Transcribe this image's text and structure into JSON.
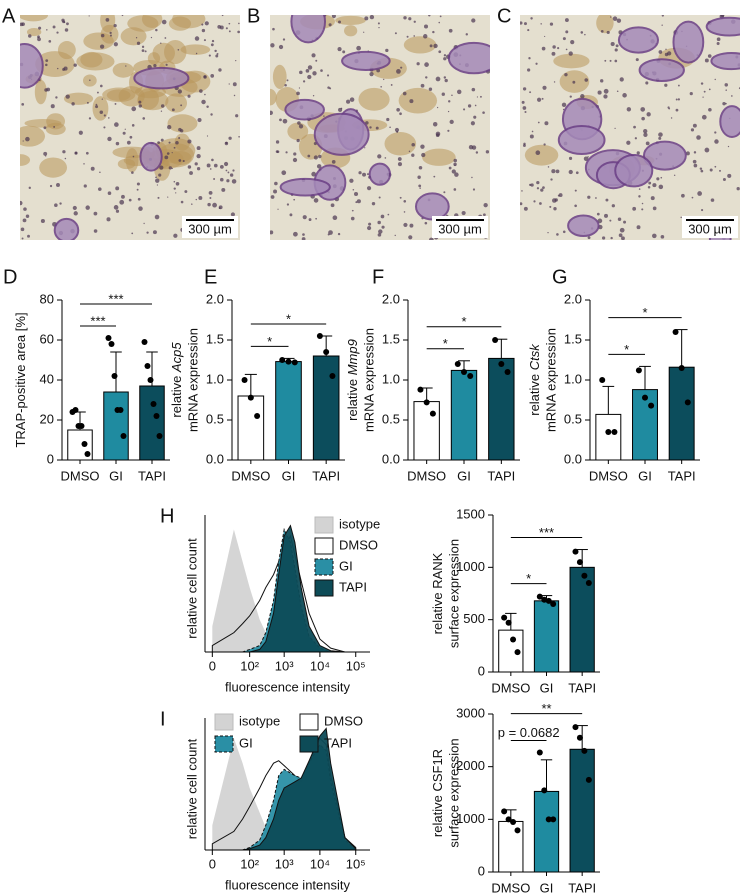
{
  "images": [
    {
      "panel": "A",
      "scale_bar": "300 µm"
    },
    {
      "panel": "B",
      "scale_bar": "300 µm"
    },
    {
      "panel": "C",
      "scale_bar": "300 µm"
    }
  ],
  "chart_data": [
    {
      "type": "bar",
      "panel": "D",
      "ylabel": "TRAP-positive area [%]",
      "categories": [
        "DMSO",
        "GI",
        "TAPI"
      ],
      "colors": [
        "#ffffff",
        "#1f8ba0",
        "#0c4d5c"
      ],
      "values": [
        15,
        34,
        37
      ],
      "errors": [
        9,
        20,
        17
      ],
      "points": [
        [
          24,
          25,
          17,
          17,
          8,
          3
        ],
        [
          61,
          58,
          42,
          25,
          25,
          12
        ],
        [
          59,
          47,
          40,
          28,
          22,
          12
        ]
      ],
      "ylim": [
        0,
        80
      ],
      "yticks": [
        0,
        20,
        40,
        60,
        80
      ],
      "significance": [
        {
          "pair": [
            "DMSO",
            "GI"
          ],
          "label": "***"
        },
        {
          "pair": [
            "DMSO",
            "TAPI"
          ],
          "label": "***"
        }
      ]
    },
    {
      "type": "bar",
      "panel": "E",
      "ylabel": "relative",
      "gene": "Acp5",
      "ylabel2": "mRNA expression",
      "categories": [
        "DMSO",
        "GI",
        "TAPI"
      ],
      "colors": [
        "#ffffff",
        "#1f8ba0",
        "#0c4d5c"
      ],
      "values": [
        0.8,
        1.23,
        1.3
      ],
      "errors": [
        0.27,
        0.04,
        0.25
      ],
      "points": [
        [
          1.0,
          0.78,
          0.55
        ],
        [
          1.25,
          1.23,
          1.22
        ],
        [
          1.55,
          1.35,
          1.05
        ]
      ],
      "ylim": [
        0,
        2
      ],
      "yticks": [
        {
          "value": 0,
          "label": "0.0"
        },
        0.5,
        {
          "value": 1,
          "label": "1.0"
        },
        1.5,
        {
          "value": 2,
          "label": "2.0"
        }
      ],
      "significance": [
        {
          "pair": [
            "DMSO",
            "GI"
          ],
          "label": "*"
        },
        {
          "pair": [
            "DMSO",
            "TAPI"
          ],
          "label": "*"
        }
      ]
    },
    {
      "type": "bar",
      "panel": "F",
      "ylabel": "relative",
      "gene": "Mmp9",
      "ylabel2": "mRNA expression",
      "categories": [
        "DMSO",
        "GI",
        "TAPI"
      ],
      "colors": [
        "#ffffff",
        "#1f8ba0",
        "#0c4d5c"
      ],
      "values": [
        0.73,
        1.12,
        1.27
      ],
      "errors": [
        0.17,
        0.12,
        0.24
      ],
      "points": [
        [
          0.88,
          0.72,
          0.58
        ],
        [
          1.2,
          1.1,
          1.05
        ],
        [
          1.5,
          1.2,
          1.1
        ]
      ],
      "ylim": [
        0,
        2
      ],
      "yticks": [
        {
          "value": 0,
          "label": "0.0"
        },
        0.5,
        {
          "value": 1,
          "label": "1.0"
        },
        1.5,
        {
          "value": 2,
          "label": "2.0"
        }
      ],
      "significance": [
        {
          "pair": [
            "DMSO",
            "GI"
          ],
          "label": "*"
        },
        {
          "pair": [
            "DMSO",
            "TAPI"
          ],
          "label": "*"
        }
      ]
    },
    {
      "type": "bar",
      "panel": "G",
      "ylabel": "relative",
      "gene": "Ctsk",
      "ylabel2": "mRNA expression",
      "categories": [
        "DMSO",
        "GI",
        "TAPI"
      ],
      "colors": [
        "#ffffff",
        "#1f8ba0",
        "#0c4d5c"
      ],
      "values": [
        0.57,
        0.88,
        1.16
      ],
      "errors": [
        0.35,
        0.29,
        0.47
      ],
      "points": [
        [
          1.0,
          0.35,
          0.35
        ],
        [
          1.12,
          0.78,
          0.68
        ],
        [
          1.6,
          1.15,
          0.72
        ]
      ],
      "ylim": [
        0,
        2
      ],
      "yticks": [
        {
          "value": 0,
          "label": "0.0"
        },
        0.5,
        {
          "value": 1,
          "label": "1.0"
        },
        1.5,
        {
          "value": 2,
          "label": "2.0"
        }
      ],
      "significance": [
        {
          "pair": [
            "DMSO",
            "GI"
          ],
          "label": "*"
        },
        {
          "pair": [
            "DMSO",
            "TAPI"
          ],
          "label": "*"
        }
      ]
    },
    {
      "type": "histogram-overlay",
      "panel": "H",
      "ylabel": "relative cell count",
      "xlabel": "fluorescence intensity",
      "xscale": "biexponential",
      "legend_columns": 1,
      "x": [
        0,
        30,
        60,
        100,
        200,
        300,
        500,
        700,
        1000,
        1500,
        2000,
        3000,
        5000,
        10000,
        20000,
        50000
      ],
      "series": [
        {
          "name": "isotype",
          "color": "#d3d3d3",
          "values": [
            20,
            95,
            70,
            50,
            25,
            15,
            8,
            4,
            2,
            1,
            0,
            0,
            0,
            0,
            0,
            0
          ]
        },
        {
          "name": "DMSO",
          "color": "#ffffff",
          "values": [
            5,
            15,
            22,
            28,
            40,
            50,
            60,
            70,
            80,
            90,
            75,
            55,
            30,
            10,
            3,
            0
          ]
        },
        {
          "name": "GI",
          "color": "#2a8fa5",
          "values": [
            0,
            0,
            0,
            2,
            5,
            15,
            40,
            70,
            95,
            85,
            65,
            35,
            12,
            3,
            0,
            0
          ]
        },
        {
          "name": "TAPI",
          "color": "#0d4b57",
          "values": [
            0,
            0,
            0,
            0,
            2,
            8,
            30,
            60,
            90,
            98,
            85,
            50,
            20,
            5,
            1,
            0
          ]
        }
      ],
      "xlim": [
        -6,
        250000
      ],
      "ylim": [
        0,
        100
      ],
      "xticks": [
        0,
        {
          "value": 100,
          "label": "10²"
        },
        {
          "value": 1000,
          "label": "10³"
        },
        {
          "value": 10000,
          "label": "10⁴"
        },
        {
          "value": 100000,
          "label": "10⁵"
        }
      ]
    },
    {
      "type": "bar",
      "ylabel": "relative RANK",
      "ylabel2": "surface expression",
      "categories": [
        "DMSO",
        "GI",
        "TAPI"
      ],
      "colors": [
        "#ffffff",
        "#1f8ba0",
        "#0c4d5c"
      ],
      "values": [
        400,
        680,
        1000
      ],
      "errors": [
        160,
        50,
        170
      ],
      "points": [
        [
          520,
          470,
          310,
          190
        ],
        [
          720,
          690,
          680,
          650
        ],
        [
          1150,
          1050,
          920,
          850
        ]
      ],
      "ylim": [
        0,
        1500
      ],
      "yticks": [
        0,
        500,
        1000,
        1500
      ],
      "significance": [
        {
          "pair": [
            "DMSO",
            "GI"
          ],
          "label": "*"
        },
        {
          "pair": [
            "DMSO",
            "TAPI"
          ],
          "label": "***"
        }
      ]
    },
    {
      "type": "histogram-overlay",
      "panel": "I",
      "ylabel": "relative cell count",
      "xlabel": "fluorescence intensity",
      "xscale": "biexponential",
      "legend_columns": 2,
      "x": [
        0,
        30,
        60,
        100,
        200,
        300,
        500,
        700,
        1000,
        2000,
        3000,
        5000,
        10000,
        15000,
        20000,
        50000,
        100000
      ],
      "series": [
        {
          "name": "isotype",
          "color": "#d3d3d3",
          "values": [
            20,
            90,
            70,
            50,
            30,
            18,
            10,
            5,
            3,
            1,
            0,
            0,
            0,
            0,
            0,
            0,
            0
          ]
        },
        {
          "name": "DMSO",
          "color": "#ffffff",
          "values": [
            5,
            15,
            25,
            35,
            50,
            60,
            70,
            72,
            68,
            60,
            55,
            70,
            90,
            85,
            60,
            10,
            2
          ]
        },
        {
          "name": "GI",
          "color": "#2a8fa5",
          "values": [
            0,
            0,
            0,
            2,
            8,
            20,
            40,
            60,
            65,
            60,
            58,
            70,
            85,
            80,
            55,
            8,
            0
          ]
        },
        {
          "name": "TAPI",
          "color": "#0d4b57",
          "values": [
            0,
            0,
            0,
            1,
            4,
            10,
            25,
            40,
            50,
            55,
            58,
            72,
            92,
            98,
            70,
            10,
            1
          ]
        }
      ],
      "xlim": [
        -6,
        250000
      ],
      "ylim": [
        0,
        100
      ],
      "xticks": [
        0,
        {
          "value": 100,
          "label": "10²"
        },
        {
          "value": 1000,
          "label": "10³"
        },
        {
          "value": 10000,
          "label": "10⁴"
        },
        {
          "value": 100000,
          "label": "10⁵"
        }
      ]
    },
    {
      "type": "bar",
      "ylabel": "relative CSF1R",
      "ylabel2": "surface expression",
      "categories": [
        "DMSO",
        "GI",
        "TAPI"
      ],
      "colors": [
        "#ffffff",
        "#1f8ba0",
        "#0c4d5c"
      ],
      "values": [
        960,
        1530,
        2330
      ],
      "errors": [
        220,
        600,
        450
      ],
      "points": [
        [
          1150,
          1000,
          950,
          790
        ],
        [
          2270,
          1550,
          1000,
          1000
        ],
        [
          2750,
          2550,
          2300,
          1750
        ]
      ],
      "ylim": [
        0,
        3000
      ],
      "yticks": [
        0,
        1000,
        2000,
        3000
      ],
      "significance": [
        {
          "pair": [
            "DMSO",
            "GI"
          ],
          "label": "p = 0.0682"
        },
        {
          "pair": [
            "DMSO",
            "TAPI"
          ],
          "label": "**"
        }
      ]
    }
  ]
}
